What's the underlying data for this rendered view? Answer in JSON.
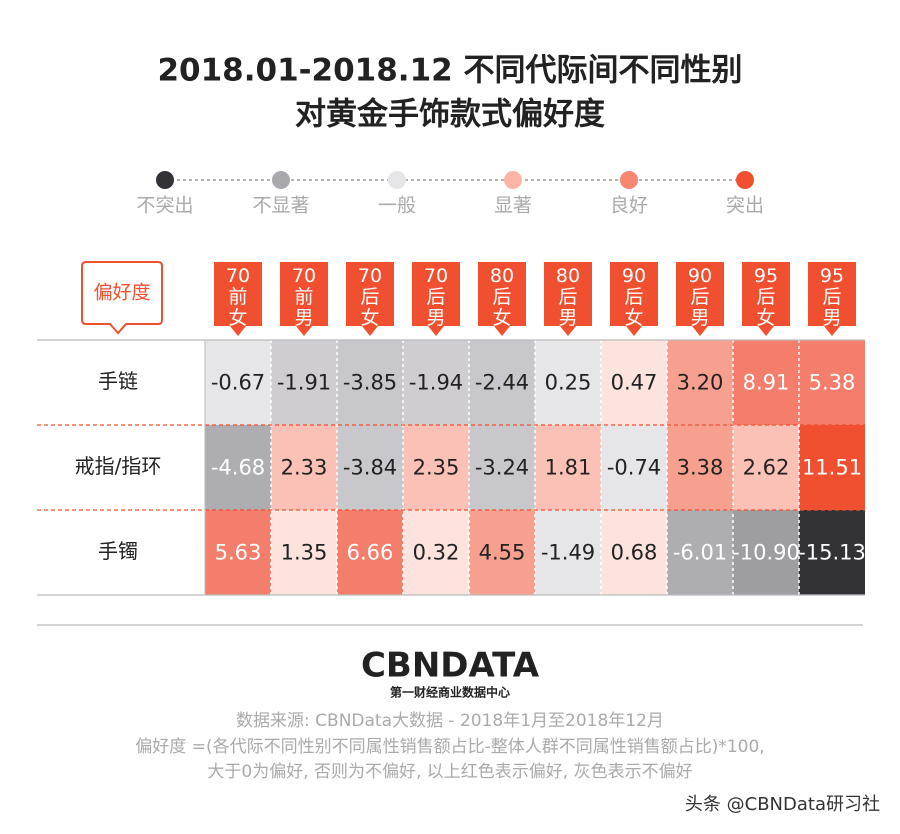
{
  "chart_data": {
    "type": "heatmap",
    "title": [
      "2018.01-2018.12 不同代际间不同性别",
      "对黄金手饰款式偏好度"
    ],
    "legend": [
      {
        "label": "不突出",
        "color": "#333237"
      },
      {
        "label": "不显著",
        "color": "#a9a8ad"
      },
      {
        "label": "一般",
        "color": "#e6e5e8"
      },
      {
        "label": "显著",
        "color": "#fbb4a6"
      },
      {
        "label": "良好",
        "color": "#f6866f"
      },
      {
        "label": "突出",
        "color": "#f0502f"
      }
    ],
    "corner_label": "偏好度",
    "columns": [
      "70前女",
      "70前男",
      "70后女",
      "70后男",
      "80后女",
      "80后男",
      "90后女",
      "90后男",
      "95后女",
      "95后男"
    ],
    "rows": [
      "手链",
      "戒指/指环",
      "手镯"
    ],
    "values": [
      [
        -0.67,
        -1.91,
        -3.85,
        -1.94,
        -2.44,
        0.25,
        0.47,
        3.2,
        8.91,
        5.38
      ],
      [
        -4.68,
        2.33,
        -3.84,
        2.35,
        -3.24,
        1.81,
        -0.74,
        3.38,
        2.62,
        11.51
      ],
      [
        5.63,
        1.35,
        6.66,
        0.32,
        4.55,
        -1.49,
        0.68,
        -6.01,
        -10.9,
        -15.13
      ]
    ],
    "value_labels": [
      [
        "-0.67",
        "-1.91",
        "-3.85",
        "-1.94",
        "-2.44",
        "0.25",
        "0.47",
        "3.20",
        "8.91",
        "5.38"
      ],
      [
        "-4.68",
        "2.33",
        "-3.84",
        "2.35",
        "-3.24",
        "1.81",
        "-0.74",
        "3.38",
        "2.62",
        "11.51"
      ],
      [
        "5.63",
        "1.35",
        "6.66",
        "0.32",
        "4.55",
        "-1.49",
        "0.68",
        "-6.01",
        "-10.90",
        "-15.13"
      ]
    ],
    "colors": [
      [
        "#e6e5e8",
        "#cfcdd1",
        "#c8c7cb",
        "#cfcdd1",
        "#c8c7cb",
        "#e6e5e8",
        "#fde3de",
        "#f8a090",
        "#f47e6b",
        "#f47e6b"
      ],
      [
        "#aeadb2",
        "#fbc1b6",
        "#c8c7cb",
        "#fbc1b6",
        "#c8c7cb",
        "#fbc1b6",
        "#e6e5e8",
        "#f8a090",
        "#fbc1b6",
        "#f0502f"
      ],
      [
        "#f47e6b",
        "#fde3de",
        "#f47e6b",
        "#fde3de",
        "#f8a090",
        "#e6e5e8",
        "#fde3de",
        "#aeadb2",
        "#9e9da2",
        "#333237"
      ]
    ]
  },
  "footer": {
    "logo": "CBNDATA",
    "logo_subtitle": "第一财经商业数据中心",
    "notes": [
      "数据来源: CBNData大数据 - 2018年1月至2018年12月",
      "偏好度 =(各代际不同性别不同属性销售额占比-整体人群不同属性销售额占比)*100,",
      "大于0为偏好, 否则为不偏好, 以上红色表示偏好, 灰色表示不偏好"
    ],
    "watermark": "头条 @CBNData研习社"
  }
}
